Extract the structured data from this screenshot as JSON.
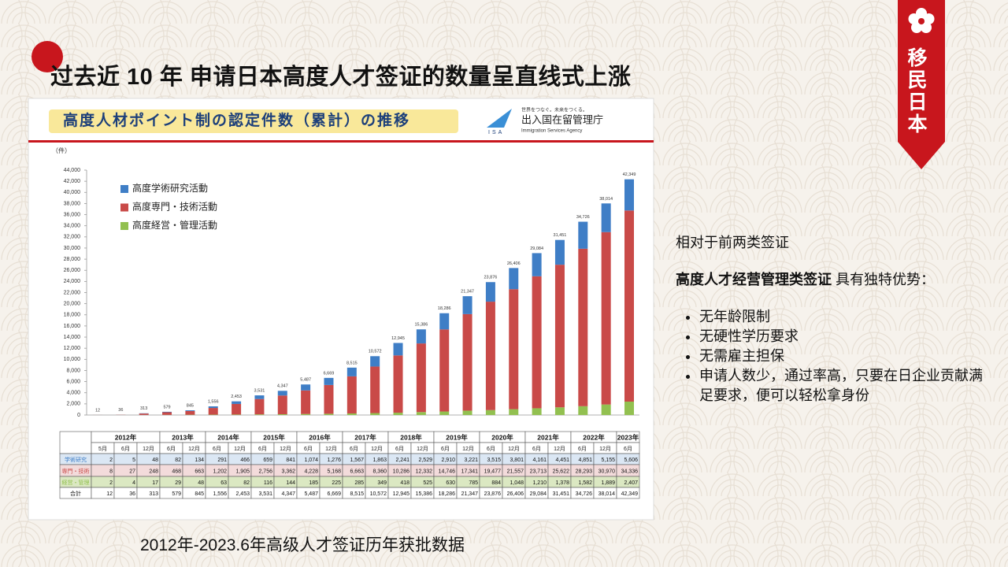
{
  "slide": {
    "title": "过去近 10 年 申请日本高度人才签证的数量呈直线式上涨",
    "ribbon": "移民日本",
    "caption": "2012年-2023.6年高级人才签证历年获批数据",
    "side_heading": "相对于前两类签证",
    "side_bold": "高度人才经营管理类签证",
    "side_rest": " 具有独特优势：",
    "bullets": [
      "无年龄限制",
      "无硬性学历要求",
      "无需雇主担保",
      "申请人数少，通过率高，只要在日企业贡献满足要求，便可以轻松拿身份"
    ]
  },
  "logo": {
    "slogan": "世界をつなぐ。未来をつくる。",
    "abbr": "ISA",
    "name": "出入国在留管理庁",
    "english": "Immigration Services Agency"
  },
  "chart_data": {
    "type": "stacked_bar",
    "title": "高度人材ポイント制の認定件数（累計）の推移",
    "y_label": "（件）",
    "years": [
      {
        "label": "2012年",
        "span": 3
      },
      {
        "label": "2013年",
        "span": 2
      },
      {
        "label": "2014年",
        "span": 2
      },
      {
        "label": "2015年",
        "span": 2
      },
      {
        "label": "2016年",
        "span": 2
      },
      {
        "label": "2017年",
        "span": 2
      },
      {
        "label": "2018年",
        "span": 2
      },
      {
        "label": "2019年",
        "span": 2
      },
      {
        "label": "2020年",
        "span": 2
      },
      {
        "label": "2021年",
        "span": 2
      },
      {
        "label": "2022年",
        "span": 2
      },
      {
        "label": "2023年",
        "span": 1
      }
    ],
    "categories": [
      "5月",
      "6月",
      "12月",
      "6月",
      "12月",
      "6月",
      "12月",
      "6月",
      "12月",
      "6月",
      "12月",
      "6月",
      "12月",
      "6月",
      "12月",
      "6月",
      "12月",
      "6月",
      "12月",
      "6月",
      "12月",
      "6月",
      "12月",
      "6月"
    ],
    "series": [
      {
        "name": "高度学術研究活動",
        "short_name": "学術研究",
        "color": "#3f7ec6",
        "row_color": "#dbe7f4",
        "values": [
          2,
          5,
          48,
          82,
          134,
          291,
          466,
          659,
          841,
          1074,
          1276,
          1567,
          1863,
          2241,
          2529,
          2910,
          3221,
          3515,
          3801,
          4161,
          4451,
          4851,
          5155,
          5606
        ],
        "value_labels": [
          "2",
          "5",
          "48",
          "82",
          "134",
          "291",
          "466",
          "659",
          "841",
          "1,074",
          "1,276",
          "1,567",
          "1,863",
          "2,241",
          "2,529",
          "2,910",
          "3,221",
          "3,515",
          "3,801",
          "4,161",
          "4,451",
          "4,851",
          "5,155",
          "5,606"
        ]
      },
      {
        "name": "高度専門・技術活動",
        "short_name": "専門・技術",
        "color": "#c94a48",
        "row_color": "#f3dbdb",
        "values": [
          8,
          27,
          248,
          468,
          663,
          1202,
          1905,
          2756,
          3362,
          4228,
          5168,
          6663,
          8360,
          10286,
          12332,
          14746,
          17341,
          19477,
          21557,
          23713,
          25622,
          28293,
          30970,
          34336
        ],
        "value_labels": [
          "8",
          "27",
          "248",
          "468",
          "663",
          "1,202",
          "1,905",
          "2,756",
          "3,362",
          "4,228",
          "5,168",
          "6,663",
          "8,360",
          "10,286",
          "12,332",
          "14,746",
          "17,341",
          "19,477",
          "21,557",
          "23,713",
          "25,622",
          "28,293",
          "30,970",
          "34,336"
        ]
      },
      {
        "name": "高度経営・管理活動",
        "short_name": "経営・管理",
        "color": "#92c050",
        "row_color": "#dbe8c2",
        "values": [
          2,
          4,
          17,
          29,
          48,
          63,
          82,
          116,
          144,
          185,
          225,
          285,
          349,
          418,
          525,
          630,
          785,
          884,
          1048,
          1210,
          1378,
          1582,
          1889,
          2407
        ],
        "value_labels": [
          "2",
          "4",
          "17",
          "29",
          "48",
          "63",
          "82",
          "116",
          "144",
          "185",
          "225",
          "285",
          "349",
          "418",
          "525",
          "630",
          "785",
          "884",
          "1,048",
          "1,210",
          "1,378",
          "1,582",
          "1,889",
          "2,407"
        ]
      }
    ],
    "totals": {
      "name": "合計",
      "values": [
        12,
        36,
        313,
        579,
        845,
        1556,
        2453,
        3531,
        4347,
        5487,
        6669,
        8515,
        10572,
        12945,
        15386,
        18286,
        21347,
        23876,
        26406,
        29084,
        31451,
        34726,
        38014,
        42349
      ],
      "value_labels": [
        "12",
        "36",
        "313",
        "579",
        "845",
        "1,556",
        "2,453",
        "3,531",
        "4,347",
        "5,487",
        "6,669",
        "8,515",
        "10,572",
        "12,945",
        "15,386",
        "18,286",
        "21,347",
        "23,876",
        "26,406",
        "29,084",
        "31,451",
        "34,726",
        "38,014",
        "42,349"
      ]
    },
    "ylim": [
      0,
      44000
    ],
    "yticks": [
      0,
      {
        "value": 2000,
        "label": "2,000"
      },
      {
        "value": 4000,
        "label": "4,000"
      },
      {
        "value": 6000,
        "label": "6,000"
      },
      {
        "value": 8000,
        "label": "8,000"
      },
      {
        "value": 10000,
        "label": "10,000"
      },
      {
        "value": 12000,
        "label": "12,000"
      },
      {
        "value": 14000,
        "label": "14,000"
      },
      {
        "value": 16000,
        "label": "16,000"
      },
      {
        "value": 18000,
        "label": "18,000"
      },
      {
        "value": 20000,
        "label": "20,000"
      },
      {
        "value": 22000,
        "label": "22,000"
      },
      {
        "value": 24000,
        "label": "24,000"
      },
      {
        "value": 26000,
        "label": "26,000"
      },
      {
        "value": 28000,
        "label": "28,000"
      },
      {
        "value": 30000,
        "label": "30,000"
      },
      {
        "value": 32000,
        "label": "32,000"
      },
      {
        "value": 34000,
        "label": "34,000"
      },
      {
        "value": 36000,
        "label": "36,000"
      },
      {
        "value": 38000,
        "label": "38,000"
      },
      {
        "value": 40000,
        "label": "40,000"
      },
      {
        "value": 42000,
        "label": "42,000"
      },
      {
        "value": 44000,
        "label": "44,000"
      }
    ],
    "grid": false,
    "legend": "upper left"
  }
}
